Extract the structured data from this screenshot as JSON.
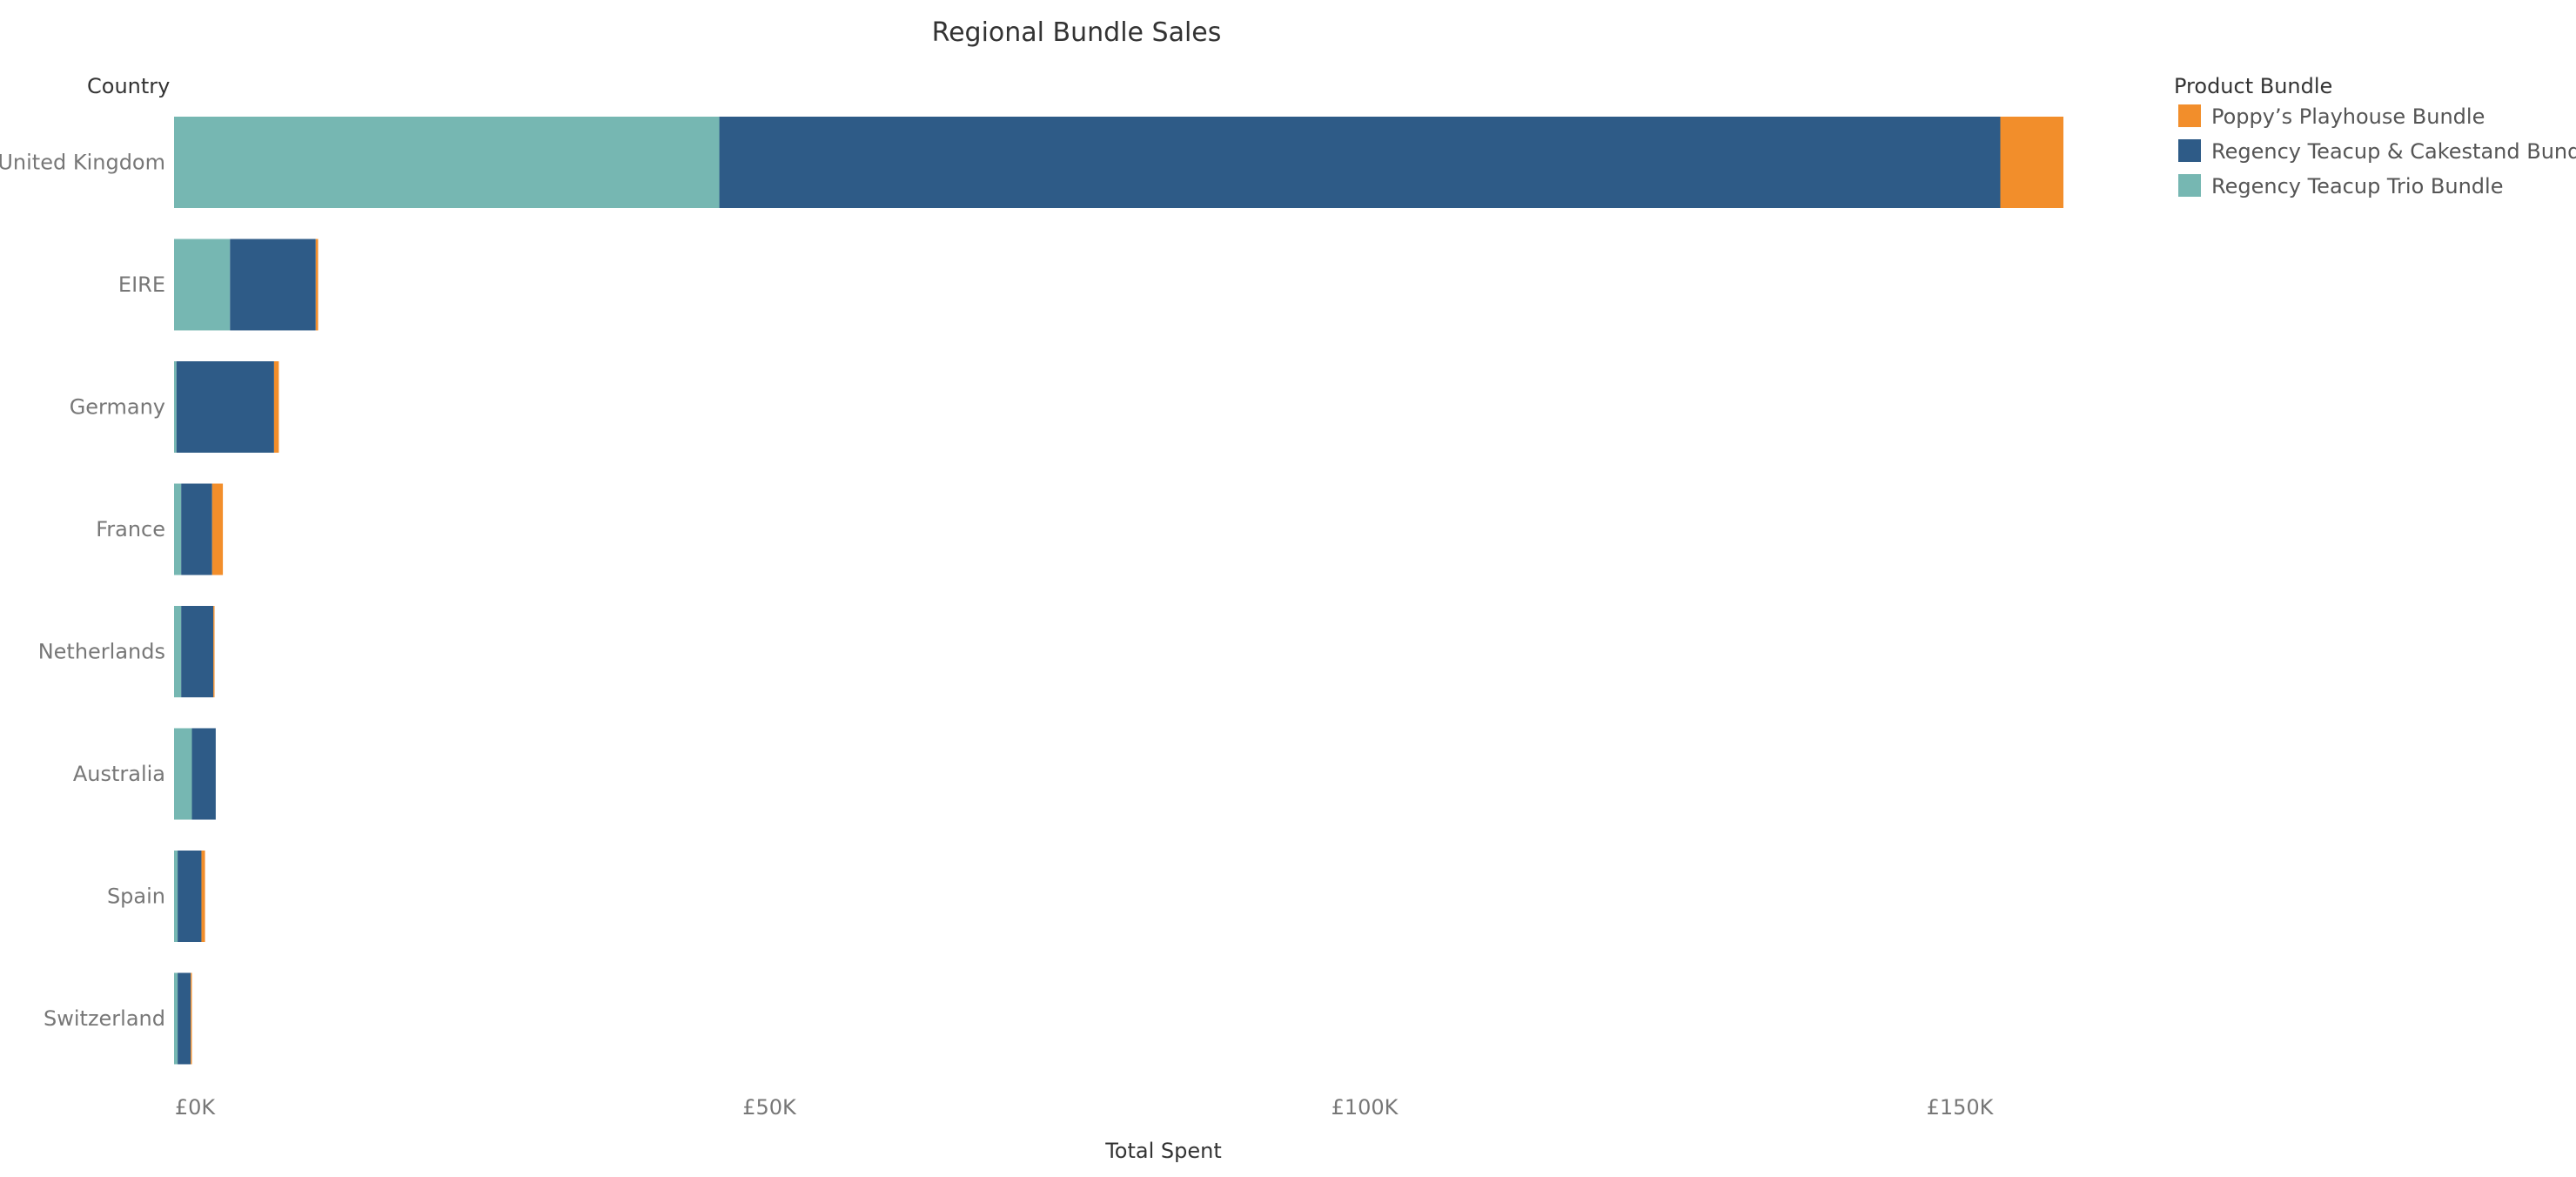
{
  "chart_data": {
    "type": "bar",
    "orientation": "horizontal",
    "stacked": true,
    "title": "Regional Bundle Sales",
    "xlabel": "Total Spent",
    "ylabel": "Country",
    "xlim": [
      0,
      160000
    ],
    "x_ticks": [
      0,
      50000,
      100000,
      150000
    ],
    "x_tick_labels": [
      "£0K",
      "£50K",
      "£100K",
      "£150K"
    ],
    "grid": false,
    "legend_title": "Product Bundle",
    "legend_position": "top-right",
    "categories": [
      "United Kingdom",
      "EIRE",
      "Germany",
      "France",
      "Netherlands",
      "Australia",
      "Spain",
      "Switzerland"
    ],
    "series": [
      {
        "name": "Regency Teacup Trio Bundle",
        "color": "#76b7b2",
        "values": [
          45800,
          4700,
          200,
          600,
          600,
          1500,
          300,
          300
        ]
      },
      {
        "name": "Regency Teacup & Cakestand Bundle",
        "color": "#2e5b87",
        "values": [
          107600,
          7200,
          8200,
          2600,
          2700,
          2000,
          2000,
          1100
        ]
      },
      {
        "name": "Poppy’s Playhouse Bundle",
        "color": "#f28e2b",
        "values": [
          5300,
          200,
          400,
          900,
          100,
          0,
          300,
          100
        ]
      }
    ],
    "legend_order": [
      "Poppy’s Playhouse Bundle",
      "Regency Teacup & Cakestand Bundle",
      "Regency Teacup Trio Bundle"
    ]
  }
}
